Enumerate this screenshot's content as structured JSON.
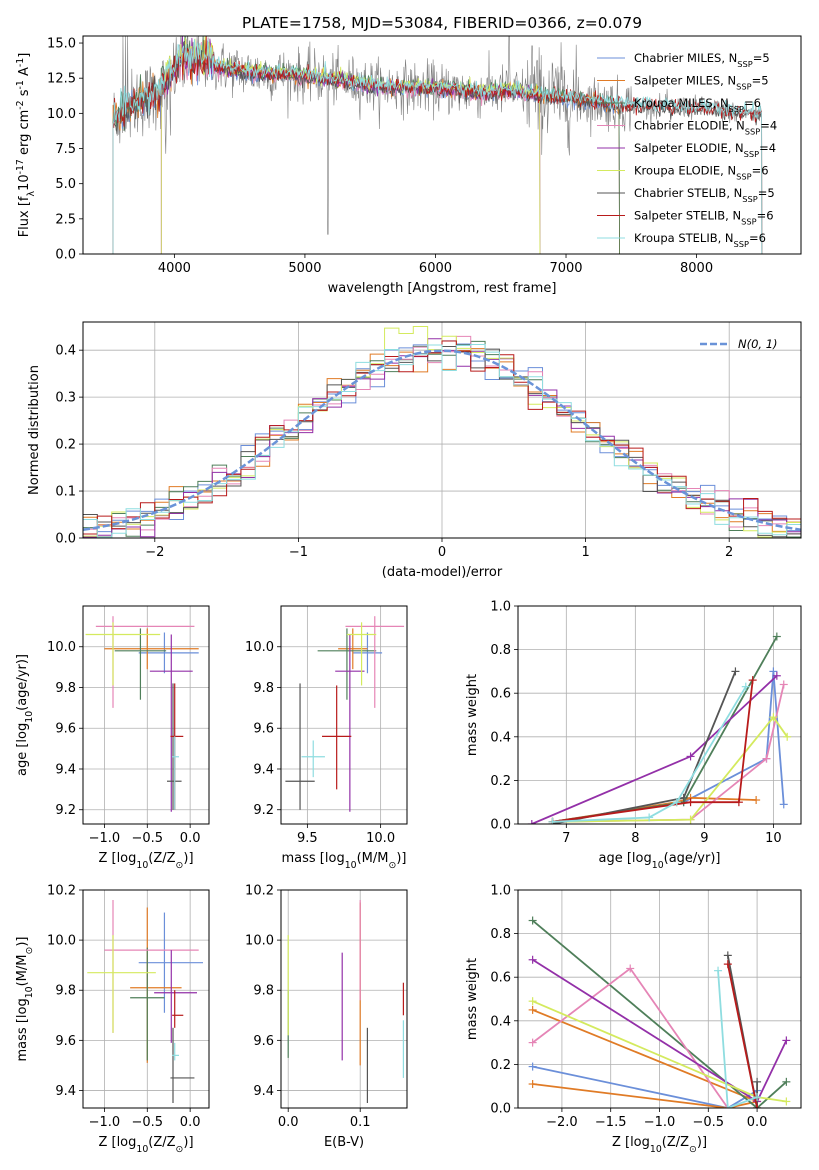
{
  "figure_title": "PLATE=1758, MJD=53084, FIBERID=0366, z=0.079",
  "colors": {
    "Chabrier MILES": "#6b8fd9",
    "Salpeter MILES": "#e07b26",
    "Kroupa MILES": "#4f7f5a",
    "Chabrier ELODIE": "#e585b6",
    "Salpeter ELODIE": "#9330a8",
    "Kroupa ELODIE": "#d4ea5e",
    "Chabrier STELIB": "#555555",
    "Salpeter STELIB": "#b81b1b",
    "Kroupa STELIB": "#8fdde0",
    "observed": "#808080",
    "normal": "#6a93d8"
  },
  "chart_data": [
    {
      "id": "spectrum",
      "type": "line",
      "title": "PLATE=1758, MJD=53084, FIBERID=0366, z=0.079",
      "xlabel": "wavelength [Angstrom, rest frame]",
      "ylabel": "Flux [f$_\\lambda$10$^{-17}$ erg cm$^{-2}$ s$^{-1}$ A$^{-1}$]",
      "xlim": [
        3300,
        8800
      ],
      "ylim": [
        0,
        15.5
      ],
      "xticks": [
        4000,
        5000,
        6000,
        7000,
        8000
      ],
      "yticks": [
        0.0,
        2.5,
        5.0,
        7.5,
        10.0,
        12.5,
        15.0
      ],
      "legend_position": "upper-right",
      "grid": false,
      "continuum_anchors": [
        [
          3530,
          9.6
        ],
        [
          3700,
          10.7
        ],
        [
          3900,
          11.6
        ],
        [
          4050,
          13.6
        ],
        [
          4300,
          13.4
        ],
        [
          4600,
          12.9
        ],
        [
          5000,
          12.7
        ],
        [
          5300,
          12.3
        ],
        [
          5600,
          11.9
        ],
        [
          6000,
          11.8
        ],
        [
          6300,
          11.5
        ],
        [
          6560,
          11.6
        ],
        [
          6800,
          11.3
        ],
        [
          7100,
          11.0
        ],
        [
          7400,
          10.6
        ],
        [
          7700,
          10.5
        ],
        [
          8000,
          10.4
        ],
        [
          8300,
          10.1
        ],
        [
          8500,
          10.0
        ]
      ],
      "series": [
        {
          "name": "Chabrier MILES, N$_{SSP}$=5",
          "model": "Chabrier MILES",
          "x_range": [
            3530,
            7410
          ]
        },
        {
          "name": "Salpeter MILES, N$_{SSP}$=5",
          "model": "Salpeter MILES",
          "x_range": [
            3530,
            7410
          ]
        },
        {
          "name": "Kroupa MILES, N$_{SSP}$=6",
          "model": "Kroupa MILES",
          "x_range": [
            3530,
            7410
          ]
        },
        {
          "name": "Chabrier ELODIE, N$_{SSP}$=4",
          "model": "Chabrier ELODIE",
          "x_range": [
            3900,
            6800
          ]
        },
        {
          "name": "Salpeter ELODIE, N$_{SSP}$=4",
          "model": "Salpeter ELODIE",
          "x_range": [
            3900,
            6800
          ]
        },
        {
          "name": "Kroupa ELODIE, N$_{SSP}$=6",
          "model": "Kroupa ELODIE",
          "x_range": [
            3900,
            6800
          ]
        },
        {
          "name": "Chabrier STELIB, N$_{SSP}$=5",
          "model": "Chabrier STELIB",
          "x_range": [
            3530,
            8500
          ]
        },
        {
          "name": "Salpeter STELIB, N$_{SSP}$=6",
          "model": "Salpeter STELIB",
          "x_range": [
            3530,
            8500
          ]
        },
        {
          "name": "Kroupa STELIB, N$_{SSP}$=6",
          "model": "Kroupa STELIB",
          "x_range": [
            3530,
            8500
          ]
        }
      ]
    },
    {
      "id": "residuals",
      "type": "line",
      "xlabel": "(data-model)/error",
      "ylabel": "Normed distribution",
      "xlim": [
        -2.5,
        2.5
      ],
      "ylim": [
        0,
        0.46
      ],
      "xticks": [
        -2,
        -1,
        0,
        1,
        2
      ],
      "yticks": [
        0.0,
        0.1,
        0.2,
        0.3,
        0.4
      ],
      "grid": true,
      "legend": [
        {
          "name": "$\\mathcal{N}(0, 1)$",
          "style": "dashed"
        }
      ],
      "legend_position": "upper-right",
      "bin_width": 0.1
    },
    {
      "id": "age_vs_Z",
      "type": "scatter",
      "xlabel": "Z [log$_{10}$(Z/Z$_\\odot$)]",
      "ylabel": "age  [log$_{10}$(age/yr)]",
      "xlim": [
        -1.25,
        0.22
      ],
      "ylim": [
        9.13,
        10.2
      ],
      "xticks": [
        -1.0,
        -0.5,
        0.0
      ],
      "yticks": [
        9.2,
        9.4,
        9.6,
        9.8,
        10.0
      ],
      "grid": true,
      "points": [
        {
          "model": "Chabrier MILES",
          "x": -0.3,
          "xerr": [
            0.3,
            0.4
          ],
          "y": 9.97,
          "yerr": [
            0.1,
            0.1
          ]
        },
        {
          "model": "Salpeter MILES",
          "x": -0.5,
          "xerr": [
            0.5,
            0.6
          ],
          "y": 9.99,
          "yerr": [
            0.1,
            0.1
          ]
        },
        {
          "model": "Kroupa MILES",
          "x": -0.58,
          "xerr": [
            0.3,
            0.3
          ],
          "y": 9.98,
          "yerr": [
            0.24,
            0.11
          ]
        },
        {
          "model": "Chabrier ELODIE",
          "x": -0.9,
          "xerr": [
            0.2,
            0.95
          ],
          "y": 10.1,
          "yerr": [
            0.4,
            0.05
          ]
        },
        {
          "model": "Salpeter ELODIE",
          "x": -0.22,
          "xerr": [
            0.25,
            0.25
          ],
          "y": 9.88,
          "yerr": [
            0.69,
            0.18
          ]
        },
        {
          "model": "Kroupa ELODIE",
          "x": -0.9,
          "xerr": [
            0.32,
            0.55
          ],
          "y": 10.06,
          "yerr": [
            0.25,
            0.06
          ]
        },
        {
          "model": "Chabrier STELIB",
          "x": -0.2,
          "xerr": [
            0.07,
            0.1
          ],
          "y": 9.34,
          "yerr": [
            0.14,
            0.48
          ]
        },
        {
          "model": "Salpeter STELIB",
          "x": -0.18,
          "xerr": [
            0.05,
            0.1
          ],
          "y": 9.56,
          "yerr": [
            0.36,
            0.26
          ]
        },
        {
          "model": "Kroupa STELIB",
          "x": -0.18,
          "xerr": [
            0.03,
            0.05
          ],
          "y": 9.46,
          "yerr": [
            0.26,
            0.1
          ]
        }
      ]
    },
    {
      "id": "age_vs_mass",
      "type": "scatter",
      "xlabel": "mass [log$_{10}$(M/M$_\\odot$)]",
      "ylabel": "",
      "xlim": [
        9.32,
        10.18
      ],
      "ylim": [
        9.13,
        10.2
      ],
      "xticks": [
        9.5,
        10.0
      ],
      "yticks": [
        9.2,
        9.4,
        9.6,
        9.8,
        10.0
      ],
      "grid": true,
      "points": [
        {
          "model": "Chabrier MILES",
          "x": 9.91,
          "xerr": [
            0.1,
            0.1
          ],
          "y": 9.97,
          "yerr": [
            0.1,
            0.1
          ]
        },
        {
          "model": "Salpeter MILES",
          "x": 9.81,
          "xerr": [
            0.1,
            0.1
          ],
          "y": 9.99,
          "yerr": [
            0.1,
            0.1
          ]
        },
        {
          "model": "Kroupa MILES",
          "x": 9.77,
          "xerr": [
            0.2,
            0.2
          ],
          "y": 9.98,
          "yerr": [
            0.24,
            0.11
          ]
        },
        {
          "model": "Chabrier ELODIE",
          "x": 9.96,
          "xerr": [
            0.2,
            0.2
          ],
          "y": 10.1,
          "yerr": [
            0.4,
            0.05
          ]
        },
        {
          "model": "Salpeter ELODIE",
          "x": 9.79,
          "xerr": [
            0.1,
            0.1
          ],
          "y": 9.88,
          "yerr": [
            0.69,
            0.18
          ]
        },
        {
          "model": "Kroupa ELODIE",
          "x": 9.87,
          "xerr": [
            0.1,
            0.1
          ],
          "y": 10.06,
          "yerr": [
            0.25,
            0.06
          ]
        },
        {
          "model": "Chabrier STELIB",
          "x": 9.45,
          "xerr": [
            0.1,
            0.1
          ],
          "y": 9.34,
          "yerr": [
            0.14,
            0.48
          ]
        },
        {
          "model": "Salpeter STELIB",
          "x": 9.7,
          "xerr": [
            0.1,
            0.1
          ],
          "y": 9.56,
          "yerr": [
            0.26,
            0.25
          ]
        },
        {
          "model": "Kroupa STELIB",
          "x": 9.54,
          "xerr": [
            0.08,
            0.08
          ],
          "y": 9.46,
          "yerr": [
            0.1,
            0.08
          ]
        }
      ]
    },
    {
      "id": "mass_weight_vs_age",
      "type": "line",
      "xlabel": "age  [log$_{10}$(age/yr)]",
      "ylabel": "mass weight",
      "xlim": [
        6.3,
        10.4
      ],
      "ylim": [
        0,
        1.0
      ],
      "xticks": [
        7,
        8,
        9,
        10
      ],
      "yticks": [
        0.0,
        0.2,
        0.4,
        0.6,
        0.8,
        1.0
      ],
      "grid": true,
      "series": [
        {
          "model": "Chabrier MILES",
          "x": [
            6.8,
            8.7,
            9.9,
            10.0,
            10.15
          ],
          "y": [
            0.01,
            0.1,
            0.3,
            0.7,
            0.09
          ]
        },
        {
          "model": "Salpeter MILES",
          "x": [
            6.8,
            8.6,
            8.8,
            9.75
          ],
          "y": [
            0.01,
            0.1,
            0.12,
            0.11
          ]
        },
        {
          "model": "Kroupa MILES",
          "x": [
            6.8,
            8.7,
            10.05
          ],
          "y": [
            0.01,
            0.1,
            0.86
          ]
        },
        {
          "model": "Chabrier ELODIE",
          "x": [
            6.8,
            8.8,
            9.9,
            10.15
          ],
          "y": [
            0.01,
            0.02,
            0.3,
            0.64
          ]
        },
        {
          "model": "Salpeter ELODIE",
          "x": [
            6.5,
            8.8,
            10.05
          ],
          "y": [
            0.0,
            0.31,
            0.68
          ]
        },
        {
          "model": "Kroupa ELODIE",
          "x": [
            6.8,
            8.8,
            10.0,
            10.2
          ],
          "y": [
            0.01,
            0.02,
            0.49,
            0.4
          ]
        },
        {
          "model": "Chabrier STELIB",
          "x": [
            6.8,
            8.7,
            9.45
          ],
          "y": [
            0.0,
            0.12,
            0.7
          ]
        },
        {
          "model": "Salpeter STELIB",
          "x": [
            6.8,
            8.8,
            9.5,
            9.7
          ],
          "y": [
            0.01,
            0.1,
            0.1,
            0.66
          ]
        },
        {
          "model": "Kroupa STELIB",
          "x": [
            6.8,
            8.2,
            8.6,
            9.6
          ],
          "y": [
            0.01,
            0.03,
            0.1,
            0.63
          ]
        }
      ]
    },
    {
      "id": "mass_vs_Z",
      "type": "scatter",
      "xlabel": "Z [log$_{10}$(Z/Z$_\\odot$)]",
      "ylabel": "mass [log$_{10}$(M/M$_\\odot$)]",
      "xlim": [
        -1.25,
        0.22
      ],
      "ylim": [
        9.33,
        10.2
      ],
      "xticks": [
        -1.0,
        -0.5,
        0.0
      ],
      "yticks": [
        9.4,
        9.6,
        9.8,
        10.0,
        10.2
      ],
      "grid": true,
      "points": [
        {
          "model": "Chabrier MILES",
          "x": -0.3,
          "xerr": [
            0.3,
            0.45
          ],
          "y": 9.91,
          "yerr": [
            0.2,
            0.2
          ]
        },
        {
          "model": "Salpeter MILES",
          "x": -0.5,
          "xerr": [
            0.2,
            0.4
          ],
          "y": 9.81,
          "yerr": [
            0.3,
            0.32
          ]
        },
        {
          "model": "Kroupa MILES",
          "x": -0.5,
          "xerr": [
            0.2,
            0.2
          ],
          "y": 9.77,
          "yerr": [
            0.25,
            0.2
          ]
        },
        {
          "model": "Chabrier ELODIE",
          "x": -0.9,
          "xerr": [
            0.1,
            1.0
          ],
          "y": 9.96,
          "yerr": [
            0.33,
            0.2
          ]
        },
        {
          "model": "Salpeter ELODIE",
          "x": -0.22,
          "xerr": [
            0.2,
            0.3
          ],
          "y": 9.79,
          "yerr": [
            0.2,
            0.17
          ]
        },
        {
          "model": "Kroupa ELODIE",
          "x": -0.9,
          "xerr": [
            0.3,
            0.5
          ],
          "y": 9.87,
          "yerr": [
            0.24,
            0.15
          ]
        },
        {
          "model": "Chabrier STELIB",
          "x": -0.2,
          "xerr": [
            0.03,
            0.25
          ],
          "y": 9.45,
          "yerr": [
            0.1,
            0.2
          ]
        },
        {
          "model": "Salpeter STELIB",
          "x": -0.18,
          "xerr": [
            0.03,
            0.1
          ],
          "y": 9.7,
          "yerr": [
            0.05,
            0.1
          ]
        },
        {
          "model": "Kroupa STELIB",
          "x": -0.18,
          "xerr": [
            0.03,
            0.05
          ],
          "y": 9.54,
          "yerr": [
            0.02,
            0.05
          ]
        }
      ]
    },
    {
      "id": "mass_vs_ebv",
      "type": "scatter",
      "xlabel": "E(B-V)",
      "ylabel": "",
      "xlim": [
        -0.01,
        0.165
      ],
      "ylim": [
        9.33,
        10.2
      ],
      "xticks": [
        0.0,
        0.1
      ],
      "yticks": [
        9.4,
        9.6,
        9.8,
        10.0,
        10.2
      ],
      "grid": true,
      "points": [
        {
          "model": "Kroupa MILES",
          "x": 0.0,
          "y": 9.65,
          "yerr": [
            0.12,
            0.15
          ]
        },
        {
          "model": "Kroupa ELODIE",
          "x": 0.0,
          "y": 9.87,
          "yerr": [
            0.25,
            0.15
          ]
        },
        {
          "model": "Salpeter ELODIE",
          "x": 0.075,
          "y": 9.74,
          "yerr": [
            0.22,
            0.21
          ]
        },
        {
          "model": "Salpeter MILES",
          "x": 0.1,
          "y": 9.82,
          "yerr": [
            0.32,
            0.33
          ]
        },
        {
          "model": "Chabrier ELODIE",
          "x": 0.1,
          "y": 9.96,
          "yerr": [
            0.2,
            0.2
          ]
        },
        {
          "model": "Chabrier STELIB",
          "x": 0.11,
          "y": 9.45,
          "yerr": [
            0.1,
            0.2
          ]
        },
        {
          "model": "Salpeter STELIB",
          "x": 0.16,
          "y": 9.77,
          "yerr": [
            0.07,
            0.06
          ]
        },
        {
          "model": "Kroupa STELIB",
          "x": 0.16,
          "y": 9.57,
          "yerr": [
            0.12,
            0.11
          ]
        }
      ]
    },
    {
      "id": "mass_weight_vs_Z",
      "type": "line",
      "xlabel": "Z [log$_{10}$(Z/Z$_\\odot$)]",
      "ylabel": "mass weight",
      "xlim": [
        -2.45,
        0.45
      ],
      "ylim": [
        0,
        1.0
      ],
      "xticks": [
        -2.0,
        -1.5,
        -1.0,
        -0.5,
        0.0
      ],
      "yticks": [
        0.0,
        0.2,
        0.4,
        0.6,
        0.8,
        1.0
      ],
      "grid": true,
      "series": [
        {
          "model": "Chabrier MILES",
          "x": [
            -2.3,
            -0.3,
            0.0
          ],
          "y": [
            0.19,
            0.0,
            0.08
          ]
        },
        {
          "model": "Salpeter MILES",
          "x": [
            -2.3,
            -0.3,
            0.0,
            -2.3
          ],
          "y": [
            0.11,
            0.0,
            0.03,
            0.45
          ]
        },
        {
          "model": "Kroupa MILES",
          "x": [
            -2.3,
            0.0,
            0.3
          ],
          "y": [
            0.86,
            0.0,
            0.12
          ]
        },
        {
          "model": "Chabrier ELODIE",
          "x": [
            -2.3,
            -1.3,
            -0.3
          ],
          "y": [
            0.3,
            0.64,
            0.0
          ]
        },
        {
          "model": "Salpeter ELODIE",
          "x": [
            -2.3,
            0.0,
            0.3
          ],
          "y": [
            0.68,
            0.03,
            0.31
          ]
        },
        {
          "model": "Kroupa ELODIE",
          "x": [
            -2.3,
            0.0,
            0.3
          ],
          "y": [
            0.49,
            0.05,
            0.03
          ]
        },
        {
          "model": "Chabrier STELIB",
          "x": [
            -0.3,
            0.0,
            0.0
          ],
          "y": [
            0.7,
            0.0,
            0.12
          ]
        },
        {
          "model": "Salpeter STELIB",
          "x": [
            -0.3,
            0.0
          ],
          "y": [
            0.66,
            0.0
          ]
        },
        {
          "model": "Kroupa STELIB",
          "x": [
            -0.4,
            -0.3,
            0.0
          ],
          "y": [
            0.63,
            0.0,
            0.05
          ]
        }
      ]
    }
  ]
}
